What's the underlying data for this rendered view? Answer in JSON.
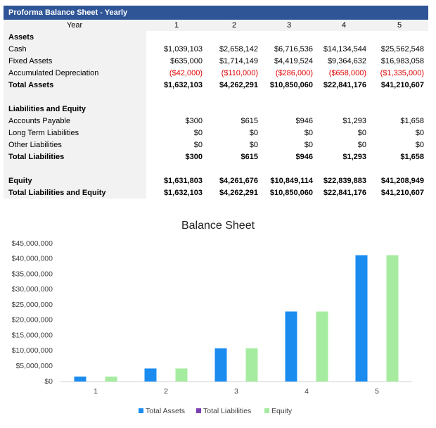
{
  "table": {
    "title": "Proforma Balance Sheet - Yearly",
    "header": [
      "Year",
      "1",
      "2",
      "3",
      "4",
      "5"
    ],
    "rows": [
      {
        "label": "Assets"
      },
      {
        "label": "Cash",
        "cells": [
          "$1,039,103",
          "$2,658,142",
          "$6,716,536",
          "$14,134,544",
          "$25,562,548"
        ]
      },
      {
        "label": "Fixed Assets",
        "cells": [
          "$635,000",
          "$1,714,149",
          "$4,419,524",
          "$9,364,632",
          "$16,983,058"
        ]
      },
      {
        "label": "Accumulated Depreciation",
        "cells": [
          "($42,000)",
          "($110,000)",
          "($286,000)",
          "($658,000)",
          "($1,335,000)"
        ]
      },
      {
        "label": "Total Assets",
        "cells": [
          "$1,632,103",
          "$4,262,291",
          "$10,850,060",
          "$22,841,176",
          "$41,210,607"
        ]
      },
      {
        "label": "Liabilities and Equity"
      },
      {
        "label": "Accounts Payable",
        "cells": [
          "$300",
          "$615",
          "$946",
          "$1,293",
          "$1,658"
        ]
      },
      {
        "label": "Long Term Liabilities",
        "cells": [
          "$0",
          "$0",
          "$0",
          "$0",
          "$0"
        ]
      },
      {
        "label": "Other Liabilities",
        "cells": [
          "$0",
          "$0",
          "$0",
          "$0",
          "$0"
        ]
      },
      {
        "label": "Total Liabilities",
        "cells": [
          "$300",
          "$615",
          "$946",
          "$1,293",
          "$1,658"
        ]
      },
      {
        "label": "Equity",
        "cells": [
          "$1,631,803",
          "$4,261,676",
          "$10,849,114",
          "$22,839,883",
          "$41,208,949"
        ]
      },
      {
        "label": "Total Liabilities and Equity",
        "cells": [
          "$1,632,103",
          "$4,262,291",
          "$10,850,060",
          "$22,841,176",
          "$41,210,607"
        ]
      }
    ]
  },
  "chart_data": {
    "type": "bar",
    "title": "Balance Sheet",
    "categories": [
      "1",
      "2",
      "3",
      "4",
      "5"
    ],
    "series": [
      {
        "name": "Total Assets",
        "color": "#1a8cf0",
        "values": [
          1632103,
          4262291,
          10850060,
          22841176,
          41210607
        ]
      },
      {
        "name": "Total Liabilities",
        "color": "#7a3fb0",
        "values": [
          300,
          615,
          946,
          1293,
          1658
        ]
      },
      {
        "name": "Equity",
        "color": "#a6eca0",
        "values": [
          1631803,
          4261676,
          10849114,
          22839883,
          41208949
        ]
      }
    ],
    "ylim": [
      0,
      45000000
    ],
    "yticks": [
      {
        "value": 0,
        "label": "$0"
      },
      {
        "value": 5000000,
        "label": "$5,000,000"
      },
      {
        "value": 10000000,
        "label": "$10,000,000"
      },
      {
        "value": 15000000,
        "label": "$15,000,000"
      },
      {
        "value": 20000000,
        "label": "$20,000,000"
      },
      {
        "value": 25000000,
        "label": "$25,000,000"
      },
      {
        "value": 30000000,
        "label": "$30,000,000"
      },
      {
        "value": 35000000,
        "label": "$35,000,000"
      },
      {
        "value": 40000000,
        "label": "$40,000,000"
      },
      {
        "value": 45000000,
        "label": "$45,000,000"
      }
    ]
  }
}
